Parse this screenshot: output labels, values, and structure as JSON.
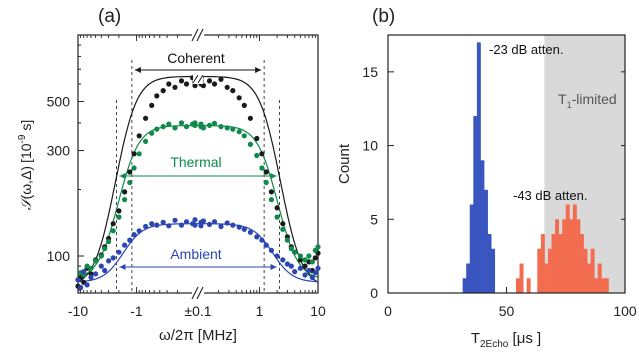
{
  "chart_data": [
    {
      "panel_label": "(a)",
      "type": "scatter",
      "xlabel": "ω/2π [MHz]",
      "ylabel": "S(ω,Δ) [10⁻⁹ s]",
      "ylabel_parts": {
        "symbol": "𝒮",
        "args": "(ω,Δ)",
        "unit_open": "[10",
        "unit_exp": "-9",
        "unit_close": " s]"
      },
      "xscale": "symlog",
      "yscale": "log",
      "xlim": [
        -10,
        10
      ],
      "ylim": [
        68,
        1000
      ],
      "xticklabels": [
        "-10",
        "-1",
        "±0.1",
        "1",
        "10"
      ],
      "yticks": [
        100,
        300,
        500
      ],
      "yticklabels": [
        "100",
        "300",
        "500"
      ],
      "axis_break": "//",
      "series": [
        {
          "name": "Coherent",
          "color": "#1a1a1a",
          "fit_color": "#1a1a1a",
          "plateau": 650,
          "x_flat": [
            -0.05,
            0.05
          ],
          "bracket_x": [
            -1.2,
            1.2
          ],
          "bracket_y": 820,
          "points": [
            [
              -10,
              73
            ],
            [
              -9,
              80
            ],
            [
              -8,
              76
            ],
            [
              -7,
              88
            ],
            [
              -6,
              83
            ],
            [
              -5,
              96
            ],
            [
              -4,
              101
            ],
            [
              -3.5,
              110
            ],
            [
              -3,
              120
            ],
            [
              -2.5,
              140
            ],
            [
              -2,
              160
            ],
            [
              -1.6,
              195
            ],
            [
              -1.3,
              240
            ],
            [
              -1.1,
              290
            ],
            [
              -0.9,
              350
            ],
            [
              -0.7,
              420
            ],
            [
              -0.55,
              480
            ],
            [
              -0.45,
              530
            ],
            [
              -0.35,
              560
            ],
            [
              -0.28,
              600
            ],
            [
              -0.22,
              580
            ],
            [
              -0.17,
              620
            ],
            [
              -0.14,
              600
            ],
            [
              -0.11,
              640
            ],
            [
              -0.09,
              610
            ],
            [
              -0.07,
              650
            ],
            [
              -0.06,
              590
            ],
            [
              0.06,
              620
            ],
            [
              0.07,
              600
            ],
            [
              0.09,
              640
            ],
            [
              0.11,
              590
            ],
            [
              0.14,
              620
            ],
            [
              0.17,
              600
            ],
            [
              0.22,
              630
            ],
            [
              0.28,
              580
            ],
            [
              0.35,
              560
            ],
            [
              0.45,
              520
            ],
            [
              0.55,
              480
            ],
            [
              0.7,
              420
            ],
            [
              0.9,
              340
            ],
            [
              1.1,
              290
            ],
            [
              1.3,
              240
            ],
            [
              1.6,
              195
            ],
            [
              2,
              165
            ],
            [
              2.5,
              140
            ],
            [
              3,
              122
            ],
            [
              3.5,
              110
            ],
            [
              4,
              104
            ],
            [
              5,
              96
            ],
            [
              6,
              90
            ],
            [
              7,
              94
            ],
            [
              8,
              86
            ],
            [
              9,
              98
            ],
            [
              10,
              103
            ]
          ]
        },
        {
          "name": "Thermal",
          "color": "#0e8a4a",
          "fit_color": "#0e8a4a",
          "plateau": 390,
          "x_flat": [
            -0.05,
            0.05
          ],
          "bracket_x": [
            -2.2,
            2.2
          ],
          "bracket_y": 235,
          "points": [
            [
              -10,
              78
            ],
            [
              -9,
              84
            ],
            [
              -8,
              82
            ],
            [
              -7,
              90
            ],
            [
              -6,
              88
            ],
            [
              -5,
              95
            ],
            [
              -4,
              100
            ],
            [
              -3.5,
              108
            ],
            [
              -3,
              116
            ],
            [
              -2.5,
              130
            ],
            [
              -2,
              150
            ],
            [
              -1.6,
              180
            ],
            [
              -1.3,
              215
            ],
            [
              -1.1,
              250
            ],
            [
              -0.9,
              290
            ],
            [
              -0.7,
              330
            ],
            [
              -0.55,
              360
            ],
            [
              -0.45,
              375
            ],
            [
              -0.35,
              385
            ],
            [
              -0.28,
              395
            ],
            [
              -0.22,
              380
            ],
            [
              -0.17,
              400
            ],
            [
              -0.14,
              385
            ],
            [
              -0.11,
              395
            ],
            [
              -0.09,
              390
            ],
            [
              -0.07,
              400
            ],
            [
              0.07,
              385
            ],
            [
              0.09,
              395
            ],
            [
              0.11,
              380
            ],
            [
              0.14,
              390
            ],
            [
              0.17,
              398
            ],
            [
              0.22,
              385
            ],
            [
              0.28,
              380
            ],
            [
              0.35,
              375
            ],
            [
              0.45,
              365
            ],
            [
              0.55,
              350
            ],
            [
              0.7,
              320
            ],
            [
              0.9,
              285
            ],
            [
              1.1,
              250
            ],
            [
              1.3,
              215
            ],
            [
              1.6,
              180
            ],
            [
              2,
              150
            ],
            [
              2.5,
              132
            ],
            [
              3,
              118
            ],
            [
              3.5,
              108
            ],
            [
              4,
              104
            ],
            [
              5,
              100
            ],
            [
              6,
              96
            ],
            [
              7,
              100
            ],
            [
              8,
              94
            ],
            [
              9,
              106
            ],
            [
              10,
              110
            ]
          ]
        },
        {
          "name": "Ambient",
          "color": "#2b45b5",
          "fit_color": "#2b45b5",
          "plateau": 140,
          "x_flat": [
            -0.05,
            0.05
          ],
          "bracket_x": [
            -2.2,
            2.2
          ],
          "bracket_y": 78,
          "points": [
            [
              -10,
              78
            ],
            [
              -9,
              72
            ],
            [
              -8,
              85
            ],
            [
              -7,
              74
            ],
            [
              -6,
              80
            ],
            [
              -5,
              83
            ],
            [
              -4,
              90
            ],
            [
              -3.5,
              86
            ],
            [
              -3,
              95
            ],
            [
              -2.5,
              98
            ],
            [
              -2,
              104
            ],
            [
              -1.6,
              112
            ],
            [
              -1.3,
              118
            ],
            [
              -1.1,
              125
            ],
            [
              -0.9,
              130
            ],
            [
              -0.7,
              136
            ],
            [
              -0.55,
              140
            ],
            [
              -0.45,
              138
            ],
            [
              -0.35,
              142
            ],
            [
              -0.28,
              137
            ],
            [
              -0.22,
              145
            ],
            [
              -0.17,
              138
            ],
            [
              -0.14,
              143
            ],
            [
              -0.11,
              140
            ],
            [
              -0.09,
              146
            ],
            [
              -0.07,
              138
            ],
            [
              0.07,
              142
            ],
            [
              0.09,
              137
            ],
            [
              0.11,
              144
            ],
            [
              0.14,
              139
            ],
            [
              0.17,
              143
            ],
            [
              0.22,
              136
            ],
            [
              0.28,
              141
            ],
            [
              0.35,
              138
            ],
            [
              0.45,
              135
            ],
            [
              0.55,
              132
            ],
            [
              0.7,
              128
            ],
            [
              0.9,
              122
            ],
            [
              1.1,
              118
            ],
            [
              1.3,
              112
            ],
            [
              1.6,
              106
            ],
            [
              2,
              100
            ],
            [
              2.5,
              96
            ],
            [
              3,
              92
            ],
            [
              3.5,
              90
            ],
            [
              4,
              85
            ],
            [
              5,
              88
            ],
            [
              6,
              82
            ],
            [
              7,
              86
            ],
            [
              8,
              80
            ],
            [
              9,
              84
            ],
            [
              10,
              88
            ]
          ]
        }
      ]
    },
    {
      "panel_label": "(b)",
      "type": "bar",
      "subtype": "histogram",
      "xlabel": "T₂Echo [μs]",
      "xlabel_parts": {
        "T": "T",
        "sub": "2Echo",
        "unit": " [μs ]"
      },
      "ylabel": "Count",
      "xlim": [
        0,
        100
      ],
      "ylim": [
        0,
        17.5
      ],
      "xticks": [
        0,
        50,
        100
      ],
      "yticks": [
        0,
        5,
        10,
        15
      ],
      "bin_width": 1.5,
      "shaded_region": {
        "x": [
          66,
          100
        ],
        "label": "T₁-limited",
        "label_parts": {
          "T": "T",
          "sub": "1",
          "rest": "-limited"
        },
        "color": "#d9d9d9"
      },
      "series": [
        {
          "name": "-23 dB atten.",
          "color": "#3a55c0",
          "bins": [
            [
              31.5,
              1
            ],
            [
              33,
              2
            ],
            [
              34.5,
              6
            ],
            [
              36,
              12
            ],
            [
              37.5,
              17
            ],
            [
              39,
              9
            ],
            [
              40.5,
              7
            ],
            [
              42,
              4
            ],
            [
              43.5,
              3
            ]
          ]
        },
        {
          "name": "-43 dB atten.",
          "color": "#f26d4f",
          "bins": [
            [
              54,
              1
            ],
            [
              55.5,
              2
            ],
            [
              58.5,
              1
            ],
            [
              63,
              3
            ],
            [
              64.5,
              4
            ],
            [
              66,
              2
            ],
            [
              67.5,
              3
            ],
            [
              69,
              4
            ],
            [
              70.5,
              5
            ],
            [
              72,
              4
            ],
            [
              73.5,
              5
            ],
            [
              75,
              6
            ],
            [
              76.5,
              5
            ],
            [
              78,
              6
            ],
            [
              79.5,
              5
            ],
            [
              81,
              4
            ],
            [
              82.5,
              3
            ],
            [
              84,
              2
            ],
            [
              85.5,
              3
            ],
            [
              87,
              1
            ],
            [
              88.5,
              2
            ],
            [
              90,
              1
            ],
            [
              91.5,
              1
            ]
          ]
        }
      ]
    }
  ]
}
